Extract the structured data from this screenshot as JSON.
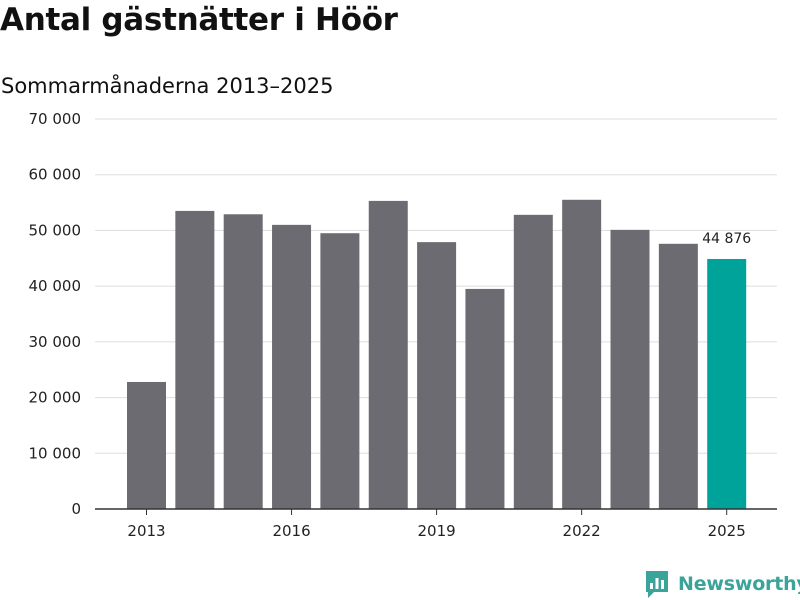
{
  "title": "Antal gästnätter i Höör",
  "subtitle": "Sommarmånaderna 2013–2025",
  "brand": {
    "name": "Newsworthy",
    "icon": "newsworthy-logo-icon",
    "color": "#3aa39a"
  },
  "chart_data": {
    "type": "bar",
    "title": "Antal gästnätter i Höör",
    "subtitle": "Sommarmånaderna 2013–2025",
    "xlabel": "",
    "ylabel": "",
    "categories": [
      "2013",
      "2014",
      "2015",
      "2016",
      "2017",
      "2018",
      "2019",
      "2020",
      "2021",
      "2022",
      "2023",
      "2024",
      "2025"
    ],
    "values": [
      22800,
      53500,
      52900,
      51000,
      49500,
      55300,
      47900,
      39500,
      52800,
      55500,
      50100,
      47600,
      44876
    ],
    "ylim": [
      0,
      70000
    ],
    "yticks": [
      0,
      10000,
      20000,
      30000,
      40000,
      50000,
      60000,
      70000
    ],
    "ytick_labels": [
      "0",
      "10 000",
      "20 000",
      "30 000",
      "40 000",
      "50 000",
      "60 000",
      "70 000"
    ],
    "xtick_labels": [
      "2013",
      "2016",
      "2019",
      "2022",
      "2025"
    ],
    "grid": true,
    "highlight": {
      "category": "2025",
      "label": "44 876"
    },
    "colors": {
      "bar": "#6c6b71",
      "highlight": "#00a39a",
      "grid": "#dddddd",
      "axis": "#333333"
    }
  }
}
